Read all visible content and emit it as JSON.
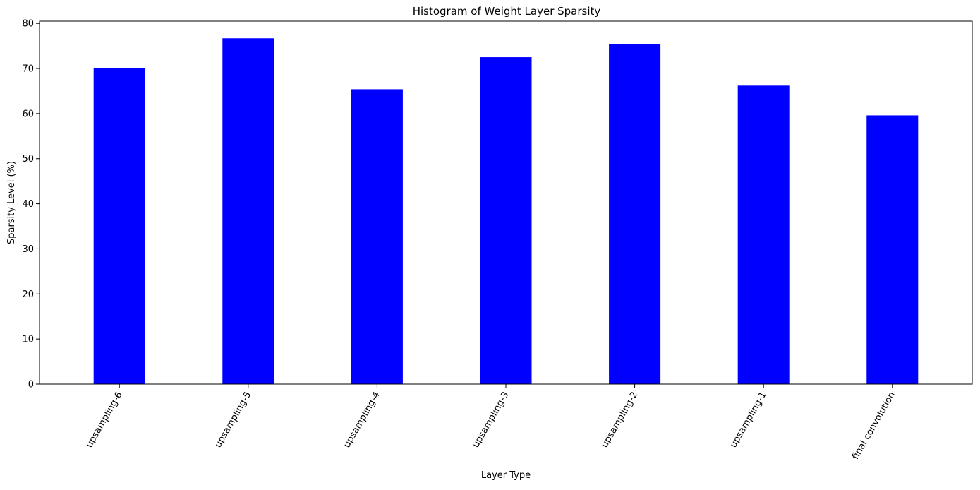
{
  "chart_data": {
    "type": "bar",
    "title": "Histogram of Weight Layer Sparsity",
    "xlabel": "Layer Type",
    "ylabel": "Sparsity Level (%)",
    "categories": [
      "upsampling-6",
      "upsampling-5",
      "upsampling-4",
      "upsampling-3",
      "upsampling-2",
      "upsampling-1",
      "final convolution"
    ],
    "values": [
      70.1,
      76.7,
      65.4,
      72.5,
      75.4,
      66.2,
      59.6
    ],
    "ylim": [
      0,
      80.5
    ],
    "yticks": [
      0,
      10,
      20,
      30,
      40,
      50,
      60,
      70,
      80
    ],
    "bar_color": "#0000ff",
    "grid": false,
    "legend": false
  }
}
